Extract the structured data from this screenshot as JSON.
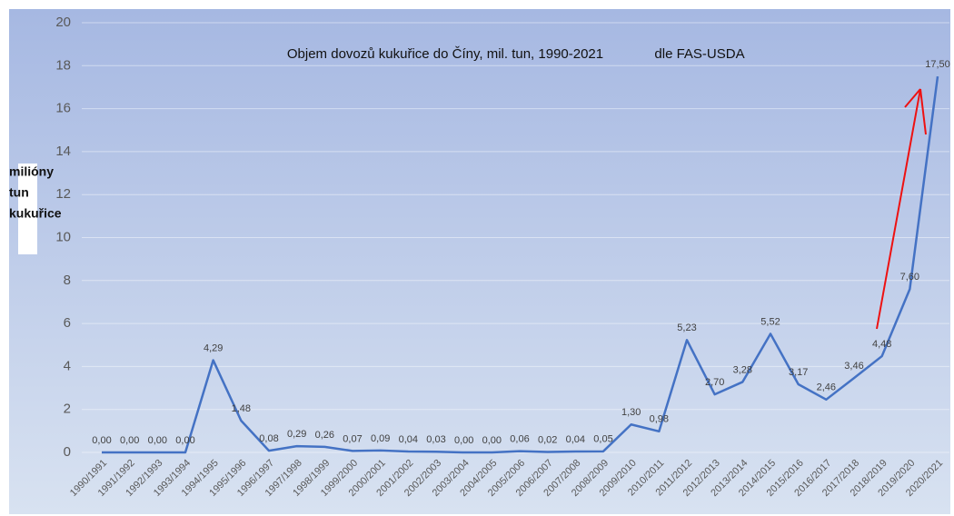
{
  "chart_data": {
    "type": "line",
    "title": "Objem dovozů kukuřice do Číny, mil. tun, 1990-2021",
    "annotation": "dle FAS-USDA",
    "y_label": [
      "milióny",
      "tun",
      "kukuřice"
    ],
    "categories": [
      "1990/1991",
      "1991/1992",
      "1992/1993",
      "1993/1994",
      "1994/1995",
      "1995/1996",
      "1996/1997",
      "1997/1998",
      "1998/1999",
      "1999/2000",
      "2000/2001",
      "2001/2002",
      "2002/2003",
      "2003/2004",
      "2004/2005",
      "2005/2006",
      "2006/2007",
      "2007/2008",
      "2008/2009",
      "2009/2010",
      "2010/2011",
      "2011/2012",
      "2012/2013",
      "2013/2014",
      "2014/2015",
      "2015/2016",
      "2016/2017",
      "2017/2018",
      "2018/2019",
      "2019/2020",
      "2020/2021"
    ],
    "series": [
      {
        "color": "#4472c4",
        "values": [
          0,
          0,
          0,
          0,
          4.29,
          1.48,
          0.08,
          0.29,
          0.26,
          0.07,
          0.09,
          0.04,
          0.03,
          0,
          0,
          0.06,
          0.02,
          0.04,
          0.05,
          1.3,
          0.98,
          5.23,
          2.7,
          3.28,
          5.52,
          3.17,
          2.46,
          3.46,
          4.48,
          7.6,
          17.5
        ],
        "value_labels": [
          "0,00",
          "0,00",
          "0,00",
          "0,00",
          "4,29",
          "1,48",
          "0,08",
          "0,29",
          "0,26",
          "0,07",
          "0,09",
          "0,04",
          "0,03",
          "0,00",
          "0,00",
          "0,06",
          "0,02",
          "0,04",
          "0,05",
          "1,30",
          "0,98",
          "5,23",
          "2,70",
          "3,28",
          "5,52",
          "3,17",
          "2,46",
          "3,46",
          "4,48",
          "7,60",
          "17,50"
        ]
      }
    ],
    "ylim": [
      0,
      20
    ],
    "yticks": [
      0,
      2,
      4,
      6,
      8,
      10,
      12,
      14,
      16,
      18,
      20
    ],
    "grid": true
  }
}
